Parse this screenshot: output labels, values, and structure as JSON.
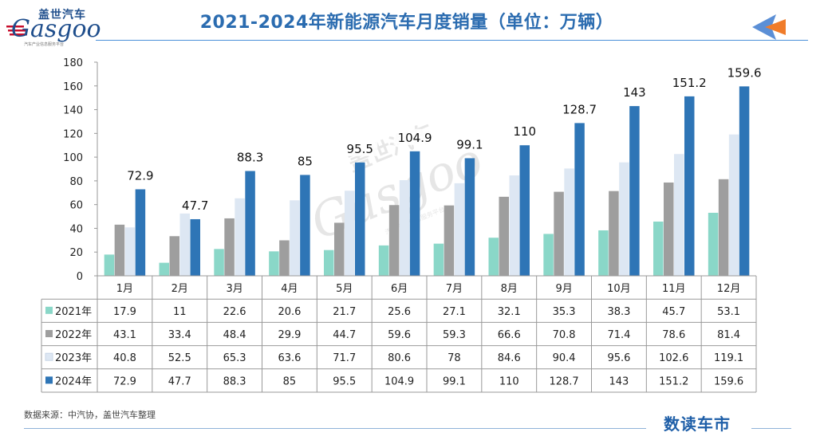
{
  "header": {
    "title": "2021-2024年新能源汽车月度销量（单位：万辆）",
    "logo_cn": "盖世汽车",
    "logo_en": "Gasgoo",
    "logo_sub": "汽车产业信息服务平台"
  },
  "watermark": {
    "cn": "盖世汽车",
    "en": "Gasgoo",
    "sub": "汽车产业信息服务平台"
  },
  "footer": {
    "source": "数据来源：中汽协，盖世汽车整理",
    "brand": "数读车市"
  },
  "colors": {
    "title": "#2b6cb0",
    "series_2021": "#8ad7c8",
    "series_2022": "#9e9e9e",
    "series_2023": "#dde7f3",
    "series_2024": "#2e75b6",
    "arrow_blue": "#5b8fd6",
    "arrow_orange": "#f07c2a"
  },
  "chart_data": {
    "type": "bar",
    "title": "2021-2024年新能源汽车月度销量（单位：万辆）",
    "categories": [
      "1月",
      "2月",
      "3月",
      "4月",
      "5月",
      "6月",
      "7月",
      "8月",
      "9月",
      "10月",
      "11月",
      "12月"
    ],
    "ylim": [
      0,
      180
    ],
    "yticks": [
      0,
      20,
      40,
      60,
      80,
      100,
      120,
      140,
      160,
      180
    ],
    "grid": false,
    "legend": "data-table-left",
    "data_labels_series": "2024年",
    "series": [
      {
        "name": "2021年",
        "color": "#8ad7c8",
        "values": [
          17.9,
          11,
          22.6,
          20.6,
          21.7,
          25.6,
          27.1,
          32.1,
          35.3,
          38.3,
          45.7,
          53.1
        ]
      },
      {
        "name": "2022年",
        "color": "#9e9e9e",
        "values": [
          43.1,
          33.4,
          48.4,
          29.9,
          44.7,
          59.6,
          59.3,
          66.6,
          70.8,
          71.4,
          78.6,
          81.4
        ]
      },
      {
        "name": "2023年",
        "color": "#dde7f3",
        "values": [
          40.8,
          52.5,
          65.3,
          63.6,
          71.7,
          80.6,
          78,
          84.6,
          90.4,
          95.6,
          102.6,
          119.1
        ]
      },
      {
        "name": "2024年",
        "color": "#2e75b6",
        "values": [
          72.9,
          47.7,
          88.3,
          85,
          95.5,
          104.9,
          99.1,
          110,
          128.7,
          143,
          151.2,
          159.6
        ]
      }
    ]
  }
}
